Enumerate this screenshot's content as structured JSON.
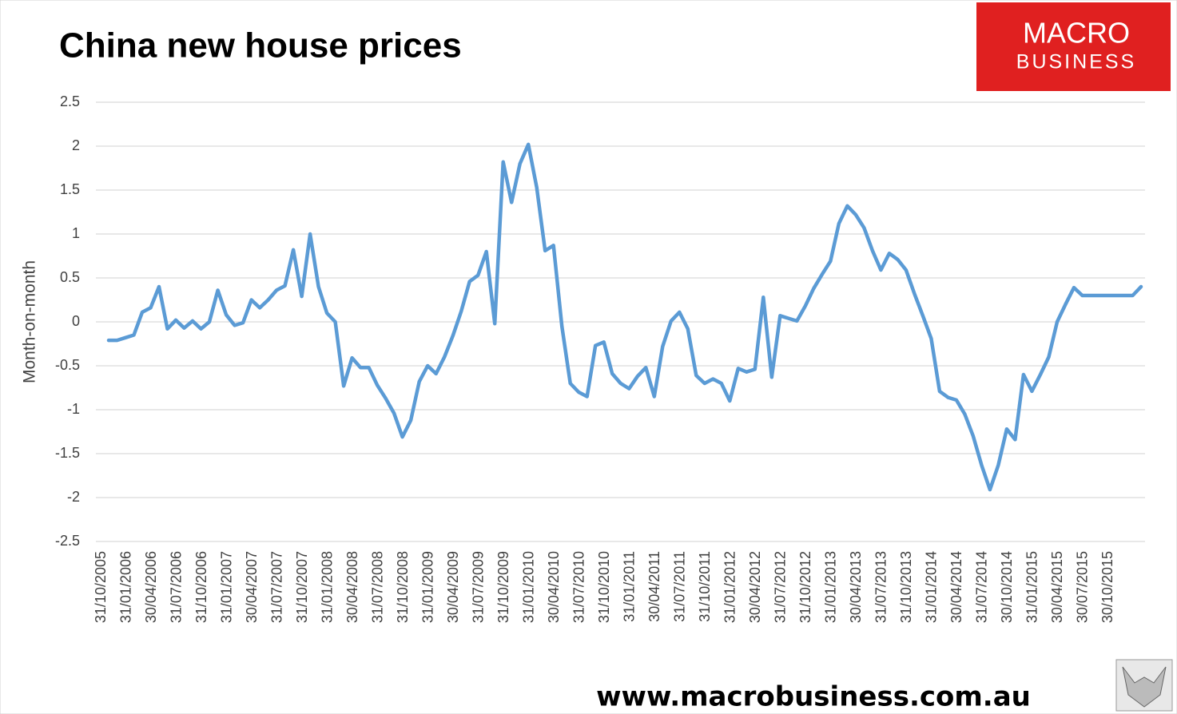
{
  "chart_data": {
    "type": "line",
    "title": "China new house prices",
    "y_label": "Month-on-month",
    "categories": [
      "31/10/2005",
      null,
      null,
      "31/01/2006",
      null,
      null,
      "30/04/2006",
      null,
      null,
      "31/07/2006",
      null,
      null,
      "31/10/2006",
      null,
      null,
      "31/01/2007",
      null,
      null,
      "30/04/2007",
      null,
      null,
      "31/07/2007",
      null,
      null,
      "31/10/2007",
      null,
      null,
      "31/01/2008",
      null,
      null,
      "30/04/2008",
      null,
      null,
      "31/07/2008",
      null,
      null,
      "31/10/2008",
      null,
      null,
      "31/01/2009",
      null,
      null,
      "30/04/2009",
      null,
      null,
      "31/07/2009",
      null,
      null,
      "31/10/2009",
      null,
      null,
      "31/01/2010",
      null,
      null,
      "30/04/2010",
      null,
      null,
      "31/07/2010",
      null,
      null,
      "31/10/2010",
      null,
      null,
      "31/01/2011",
      null,
      null,
      "30/04/2011",
      null,
      null,
      "31/07/2011",
      null,
      null,
      "31/10/2011",
      null,
      null,
      "31/01/2012",
      null,
      null,
      "30/04/2012",
      null,
      null,
      "31/07/2012",
      null,
      null,
      "31/10/2012",
      null,
      null,
      "31/01/2013",
      null,
      null,
      "30/04/2013",
      null,
      null,
      "31/07/2013",
      null,
      null,
      "31/10/2013",
      null,
      null,
      "31/01/2014",
      null,
      null,
      "30/04/2014",
      null,
      null,
      "31/07/2014",
      null,
      null,
      "30/10/2014",
      null,
      null,
      "31/01/2015",
      null,
      null,
      "30/04/2015",
      null,
      null,
      "30/07/2015",
      null,
      null,
      "30/10/2015",
      null,
      null,
      null
    ],
    "values": [
      -0.21,
      -0.21,
      -0.18,
      -0.15,
      0.11,
      0.16,
      0.4,
      -0.08,
      0.02,
      -0.07,
      0.01,
      -0.08,
      0.0,
      0.36,
      0.08,
      -0.04,
      -0.01,
      0.25,
      0.16,
      0.25,
      0.36,
      0.41,
      0.82,
      0.29,
      1.0,
      0.4,
      0.1,
      0.0,
      -0.73,
      -0.41,
      -0.52,
      -0.52,
      -0.72,
      -0.87,
      -1.04,
      -1.31,
      -1.12,
      -0.68,
      -0.5,
      -0.59,
      -0.4,
      -0.16,
      0.12,
      0.46,
      0.53,
      0.8,
      -0.02,
      1.82,
      1.36,
      1.8,
      2.02,
      1.53,
      0.81,
      0.87,
      -0.05,
      -0.7,
      -0.8,
      -0.85,
      -0.27,
      -0.23,
      -0.59,
      -0.7,
      -0.76,
      -0.62,
      -0.52,
      -0.85,
      -0.28,
      0.01,
      0.11,
      -0.08,
      -0.61,
      -0.7,
      -0.65,
      -0.7,
      -0.9,
      -0.53,
      -0.57,
      -0.54,
      0.28,
      -0.63,
      0.07,
      0.04,
      0.01,
      0.18,
      0.38,
      0.54,
      0.69,
      1.12,
      1.32,
      1.22,
      1.07,
      0.81,
      0.59,
      0.78,
      0.71,
      0.59,
      0.32,
      0.07,
      -0.19,
      -0.79,
      -0.86,
      -0.89,
      -1.05,
      -1.3,
      -1.63,
      -1.91,
      -1.63,
      -1.22,
      -1.34,
      -0.6,
      -0.79,
      -0.6,
      -0.4,
      0.0,
      0.2,
      0.39,
      0.3,
      0.3,
      0.3,
      0.3,
      0.3,
      0.3,
      0.3,
      0.4
    ],
    "color": "#5b9bd5",
    "ylim": [
      -2.5,
      2.5
    ],
    "yticks": [
      -2.5,
      -2,
      -1.5,
      -1,
      -0.5,
      0,
      0.5,
      1,
      1.5,
      2,
      2.5
    ],
    "grid": true
  },
  "logo": {
    "line1": "MACRO",
    "line2": "BUSINESS"
  },
  "url": "www.macrobusiness.com.au"
}
